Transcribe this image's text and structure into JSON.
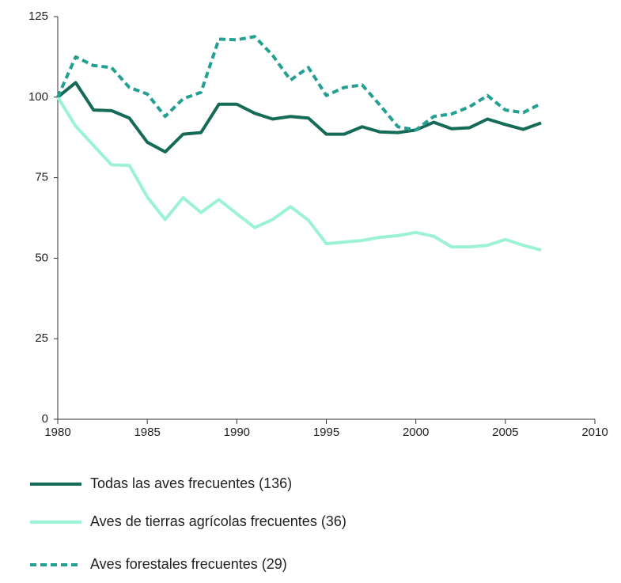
{
  "chart_data": {
    "type": "line",
    "x": [
      1980,
      1981,
      1982,
      1983,
      1984,
      1985,
      1986,
      1987,
      1988,
      1989,
      1990,
      1991,
      1992,
      1993,
      1994,
      1995,
      1996,
      1997,
      1998,
      1999,
      2000,
      2001,
      2002,
      2003,
      2004,
      2005,
      2006,
      2007
    ],
    "xlim": [
      1980,
      2010
    ],
    "xticks": [
      1980,
      1985,
      1990,
      1995,
      2000,
      2005,
      2010
    ],
    "ylim": [
      0,
      125
    ],
    "yticks": [
      0,
      25,
      50,
      75,
      100,
      125
    ],
    "grid": false,
    "legend": "bottom",
    "series": [
      {
        "name": "Todas las aves frecuentes (136)",
        "color": "#166b58",
        "dash": false,
        "values": [
          100,
          104.5,
          96,
          95.8,
          93.5,
          86,
          83,
          88.5,
          89,
          97.8,
          97.8,
          95,
          93.2,
          94,
          93.5,
          88.5,
          88.5,
          90.8,
          89.2,
          89,
          89.8,
          92.2,
          90.2,
          90.5,
          93.2,
          91.5,
          90,
          92
        ]
      },
      {
        "name": "Aves de tierras agrícolas frecuentes (36)",
        "color": "#9cf2d6",
        "dash": false,
        "values": [
          100,
          91,
          85,
          79,
          78.8,
          69,
          62,
          68.8,
          64.2,
          68.2,
          63.8,
          59.5,
          62,
          66,
          61.8,
          54.5,
          55,
          55.5,
          56.5,
          57,
          58,
          56.8,
          53.5,
          53.5,
          54,
          55.8,
          54,
          52.5
        ]
      },
      {
        "name": "Aves forestales frecuentes (29)",
        "color": "#23a091",
        "dash": true,
        "values": [
          100,
          112.5,
          109.8,
          109.2,
          103,
          101,
          94,
          99.5,
          101.5,
          118,
          117.8,
          118.8,
          113,
          105.3,
          109.2,
          100.5,
          103,
          103.8,
          97.5,
          90.8,
          89.8,
          94,
          94.8,
          97,
          100.5,
          96,
          95.2,
          98
        ]
      }
    ]
  }
}
